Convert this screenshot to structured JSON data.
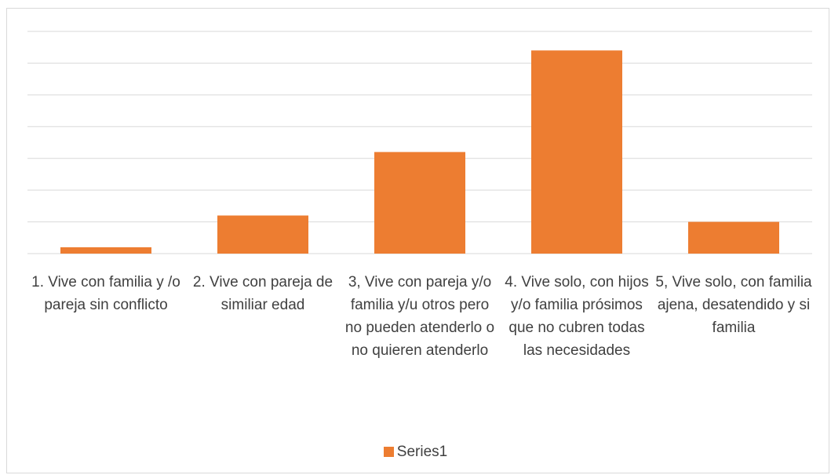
{
  "chart_data": {
    "type": "bar",
    "categories": [
      "1. Vive con familia y /o pareja sin conflicto",
      "2. Vive con pareja de similiar edad",
      "3, Vive con pareja y/o familia y/u otros pero no pueden atenderlo o no quieren atenderlo",
      "4. Vive solo, con hijos y/o familia prósimos que no cubren todas las necesidades",
      "5, Vive solo, con familia ajena, desatendido y si familia"
    ],
    "series": [
      {
        "name": "Series1",
        "color": "#ed7d31",
        "values": [
          0.2,
          1.2,
          3.2,
          6.4,
          1.0
        ]
      }
    ],
    "ylim": [
      0,
      7
    ],
    "yticks": [
      0,
      1,
      2,
      3,
      4,
      5,
      6,
      7
    ],
    "grid": true,
    "legend": "bottom"
  }
}
